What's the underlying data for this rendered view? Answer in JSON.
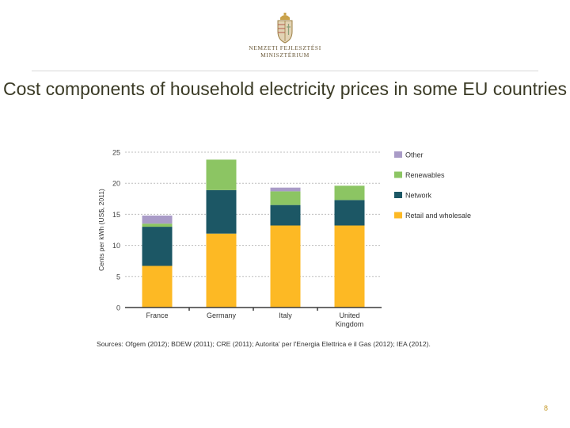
{
  "header": {
    "logo_line1": "NEMZETI FEJLESZTÉSI",
    "logo_line2": "MINISZTÉRIUM"
  },
  "slide": {
    "title": "Cost components of household electricity prices in some EU countries",
    "source": "Sources: Ofgem (2012); BDEW (2011); CRE (2011); Autorita' per l'Energia Elettrica e il Gas (2012); IEA (2012).",
    "page_number": "8"
  },
  "colors": {
    "retail": "#FDB924",
    "network": "#1C5765",
    "renewables": "#8CC563",
    "other": "#A99BC7",
    "grid": "#bdbdbd",
    "axis": "#3a3a3a"
  },
  "chart_data": {
    "type": "bar",
    "stacked": true,
    "title": "",
    "xlabel": "",
    "ylabel": "Cents per kWh (US$, 2011)",
    "ylim": [
      0,
      25
    ],
    "yticks": [
      0,
      5,
      10,
      15,
      20,
      25
    ],
    "categories": [
      "France",
      "Germany",
      "Italy",
      "United Kingdom"
    ],
    "category_lines": [
      [
        "France"
      ],
      [
        "Germany"
      ],
      [
        "Italy"
      ],
      [
        "United",
        "Kingdom"
      ]
    ],
    "series": [
      {
        "name": "Retail and wholesale",
        "key": "retail",
        "values": [
          6.7,
          11.9,
          13.2,
          13.2
        ]
      },
      {
        "name": "Network",
        "key": "network",
        "values": [
          6.3,
          7.0,
          3.3,
          4.1
        ]
      },
      {
        "name": "Renewables",
        "key": "renewables",
        "values": [
          0.5,
          4.9,
          2.2,
          2.3
        ]
      },
      {
        "name": "Other",
        "key": "other",
        "values": [
          1.3,
          0.0,
          0.6,
          0.0
        ]
      }
    ],
    "legend": {
      "position": "right",
      "order": [
        "Other",
        "Renewables",
        "Network",
        "Retail and wholesale"
      ]
    },
    "grid": true
  }
}
